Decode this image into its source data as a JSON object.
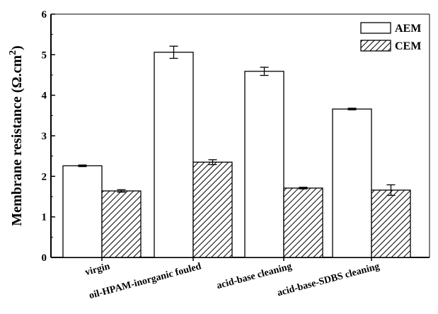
{
  "chart_data": {
    "type": "bar",
    "title": "",
    "xlabel": "",
    "ylabel": "Membrane resistance (Ω.cm",
    "ylabel_sup": "2",
    "ylabel_close": ")",
    "ylim": [
      0,
      6
    ],
    "yticks": [
      "0",
      "1",
      "2",
      "3",
      "4",
      "5",
      "6"
    ],
    "grid": false,
    "legend_position": "top-right",
    "categories": [
      "virgin",
      "oil-HPAM-inorganic fouled",
      "acid-base cleaning",
      "acid-base-SDBS cleaning"
    ],
    "series": [
      {
        "name": "AEM",
        "fill": "#ffffff",
        "pattern": "none",
        "values": [
          2.26,
          5.06,
          4.59,
          3.66
        ],
        "errors": [
          0.02,
          0.15,
          0.1,
          0.02
        ]
      },
      {
        "name": "CEM",
        "fill": "#ffffff",
        "pattern": "hatch",
        "values": [
          1.64,
          2.35,
          1.71,
          1.66
        ],
        "errors": [
          0.03,
          0.06,
          0.02,
          0.13
        ]
      }
    ]
  }
}
